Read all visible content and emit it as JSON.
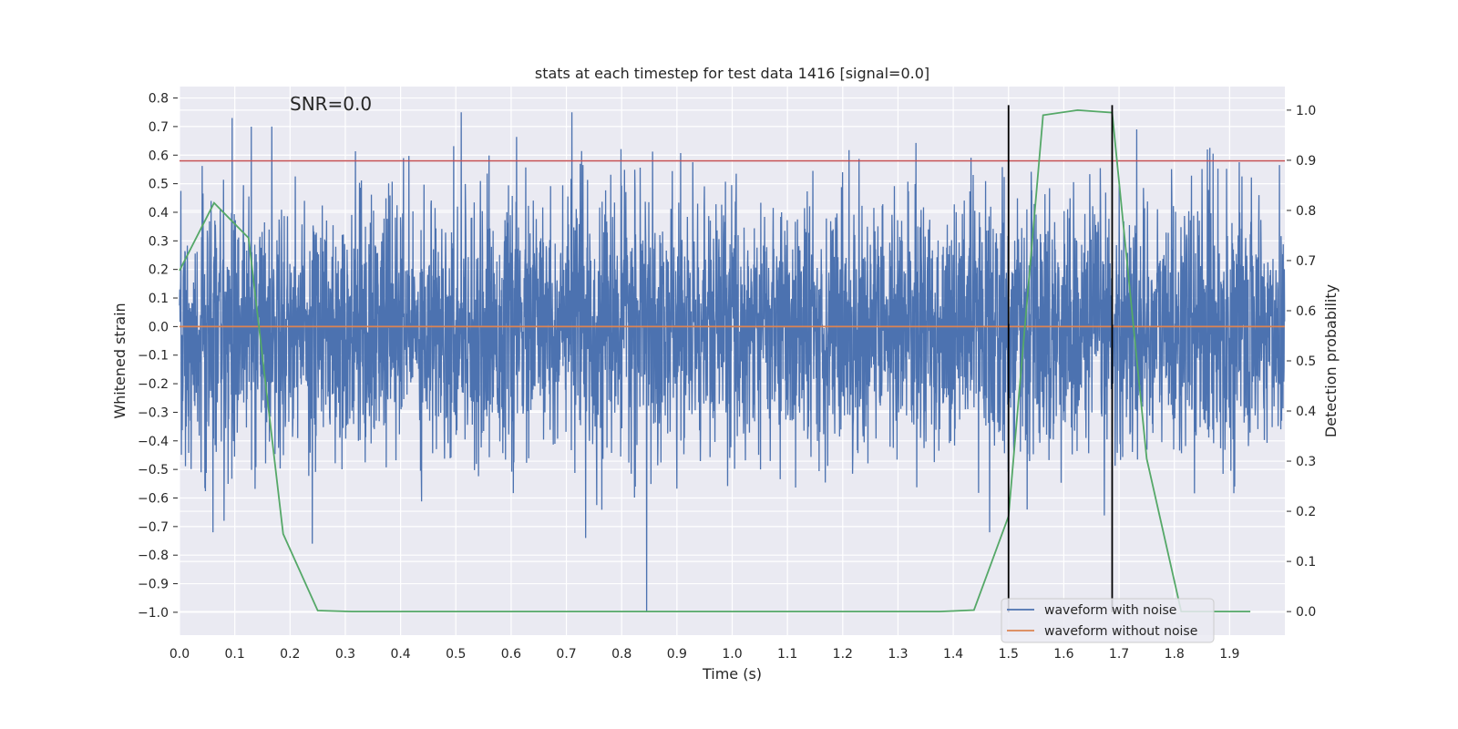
{
  "chart_data": {
    "type": "line",
    "title": "stats at each timestep for test data 1416 [signal=0.0]",
    "xlabel": "Time (s)",
    "ylabel": "Whitened strain",
    "ylabel_right": "Detection probability",
    "annotation": "SNR=0.0",
    "xlim": [
      0.0,
      2.0
    ],
    "ylim": [
      -1.08,
      0.84
    ],
    "ylim_right": [
      -0.047,
      1.047
    ],
    "xticks": [
      "0.0",
      "0.1",
      "0.2",
      "0.3",
      "0.4",
      "0.5",
      "0.6",
      "0.7",
      "0.8",
      "0.9",
      "1.0",
      "1.1",
      "1.2",
      "1.3",
      "1.4",
      "1.5",
      "1.6",
      "1.7",
      "1.8",
      "1.9"
    ],
    "yticks": [
      "0.8",
      "0.7",
      "0.6",
      "0.5",
      "0.4",
      "0.3",
      "0.2",
      "0.1",
      "0.0",
      "−0.1",
      "−0.2",
      "−0.3",
      "−0.4",
      "−0.5",
      "−0.6",
      "−0.7",
      "−0.8",
      "−0.9",
      "−1.0"
    ],
    "yticks_right": [
      "1.0",
      "0.9",
      "0.8",
      "0.7",
      "0.6",
      "0.5",
      "0.4",
      "0.3",
      "0.2",
      "0.1",
      "0.0"
    ],
    "grid": true,
    "legend_position": "lower-right",
    "series": [
      {
        "name": "waveform with noise",
        "color": "#4c72b0",
        "axis": "left",
        "sample_rate": 2048,
        "duration": 2.0,
        "amplitude_std": 0.22,
        "notable_peaks": [
          [
            0.095,
            0.73
          ],
          [
            0.51,
            0.75
          ],
          [
            0.71,
            0.75
          ],
          [
            0.845,
            -1.0
          ],
          [
            0.24,
            -0.76
          ],
          [
            0.735,
            -0.74
          ],
          [
            1.86,
            0.62
          ]
        ]
      },
      {
        "name": "waveform without noise",
        "color": "#dd8452",
        "axis": "left",
        "x": [
          0.0,
          2.0
        ],
        "y": [
          0.0,
          0.0
        ]
      },
      {
        "name": "detection probability",
        "color": "#55a868",
        "axis": "right",
        "x": [
          0.0,
          0.0625,
          0.125,
          0.1875,
          0.25,
          0.3125,
          0.375,
          0.4375,
          0.5,
          0.5625,
          0.625,
          0.6875,
          0.75,
          0.8125,
          0.875,
          0.9375,
          1.0,
          1.0625,
          1.125,
          1.1875,
          1.25,
          1.3125,
          1.375,
          1.4375,
          1.5,
          1.5625,
          1.625,
          1.6875,
          1.75,
          1.8125,
          1.875,
          1.9375
        ],
        "y": [
          0.68,
          0.815,
          0.745,
          0.155,
          0.002,
          0.0,
          0.0,
          0.0,
          0.0,
          0.0,
          0.0,
          0.0,
          0.0,
          0.0,
          0.0,
          0.0,
          0.0,
          0.0,
          0.0,
          0.0,
          0.0,
          0.0,
          0.0,
          0.003,
          0.19,
          0.99,
          1.0,
          0.995,
          0.305,
          0.0,
          0.0,
          0.0
        ]
      }
    ],
    "threshold_line": {
      "color": "#c44e52",
      "value": 0.58,
      "axis": "left"
    },
    "vertical_markers": {
      "color": "#000000",
      "x": [
        1.5,
        1.6875
      ],
      "top": 0.775,
      "bottom": -1.0
    }
  }
}
